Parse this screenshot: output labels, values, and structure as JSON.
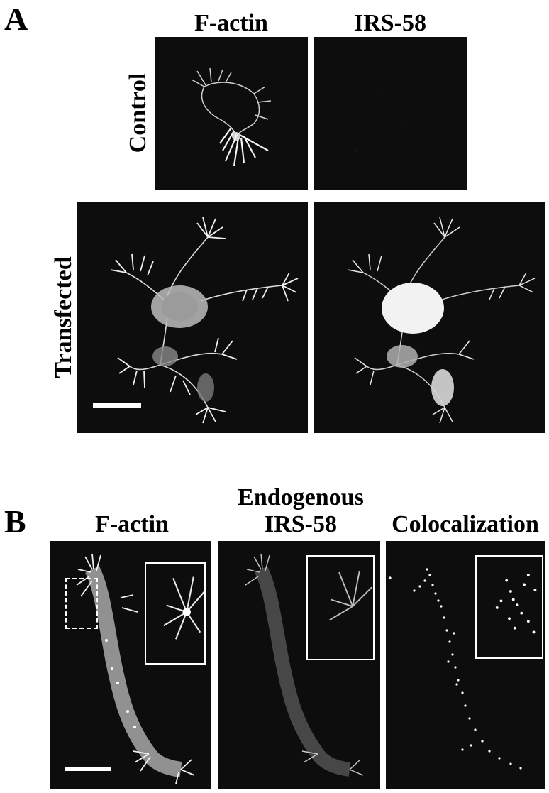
{
  "panel_a": {
    "letter": "A",
    "col_titles": [
      "F-actin",
      "IRS-58"
    ],
    "row_titles": [
      "Control",
      "Transfected"
    ]
  },
  "panel_b": {
    "letter": "B",
    "col_titles": [
      "F-actin",
      "Endogenous",
      "IRS-58",
      "Colocalization"
    ]
  },
  "colors": {
    "background": "#ffffff",
    "micrograph": "#0d0d0d",
    "signal": "#ffffff"
  }
}
